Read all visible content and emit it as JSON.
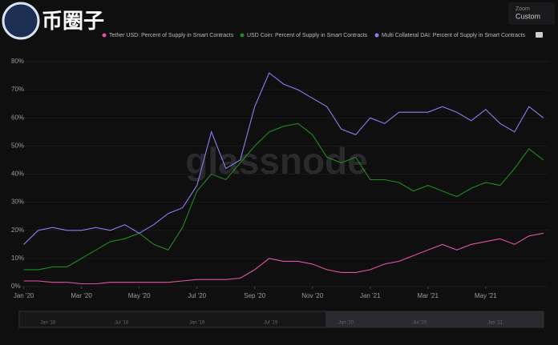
{
  "logo": "币圈子",
  "zoom": {
    "label": "Zoom",
    "value": "Custom"
  },
  "watermark": "glassnode",
  "navigator_labels": [
    "Jan '18",
    "Jul '18",
    "Jan '19",
    "Jul '19",
    "Jan '20",
    "Jul '20",
    "Jan '21"
  ],
  "chart_data": {
    "type": "line",
    "x": [
      0,
      0.5,
      1,
      1.5,
      2,
      2.5,
      3,
      3.5,
      4,
      4.5,
      5,
      5.5,
      6,
      6.5,
      7,
      7.5,
      8,
      8.5,
      9,
      9.5,
      10,
      10.5,
      11,
      11.5,
      12,
      12.5,
      13,
      13.5,
      14,
      14.5,
      15,
      15.5,
      16,
      16.5,
      17,
      17.5,
      18
    ],
    "xlim": [
      -0.1,
      18.2
    ],
    "xticks": [
      {
        "value": 0,
        "label": "Jan '20"
      },
      {
        "value": 2,
        "label": "Mar '20"
      },
      {
        "value": 4,
        "label": "May '20"
      },
      {
        "value": 6,
        "label": "Jul '20"
      },
      {
        "value": 8,
        "label": "Sep '20"
      },
      {
        "value": 10,
        "label": "Nov '20"
      },
      {
        "value": 12,
        "label": "Jan '21"
      },
      {
        "value": 14,
        "label": "Mar '21"
      },
      {
        "value": 16,
        "label": "May '21"
      }
    ],
    "ylim": [
      0,
      80
    ],
    "yticks": [
      {
        "value": 0,
        "label": "0%"
      },
      {
        "value": 10,
        "label": "10%"
      },
      {
        "value": 20,
        "label": "20%"
      },
      {
        "value": 30,
        "label": "30%"
      },
      {
        "value": 40,
        "label": "40%"
      },
      {
        "value": 50,
        "label": "50%"
      },
      {
        "value": 60,
        "label": "60%"
      },
      {
        "value": 70,
        "label": "70%"
      },
      {
        "value": 80,
        "label": "80%"
      }
    ],
    "grid": true,
    "series": [
      {
        "name": "Tether USD: Percent of Supply in Smart Contracts",
        "color": "#e0549e",
        "values": [
          2,
          2,
          1.5,
          1.5,
          1,
          1,
          1.5,
          1.5,
          1.5,
          1.5,
          1.5,
          2,
          2.5,
          2.5,
          2.5,
          3,
          6,
          10,
          9,
          9,
          8,
          6,
          5,
          5,
          6,
          8,
          9,
          11,
          13,
          15,
          13,
          15,
          16,
          17,
          15,
          18,
          19
        ]
      },
      {
        "name": "USD Coin: Percent of Supply in Smart Contracts",
        "color": "#1f8a1f",
        "values": [
          6,
          6,
          7,
          7,
          10,
          13,
          16,
          17,
          19,
          15,
          13,
          21,
          34,
          40,
          38,
          44,
          50,
          55,
          57,
          58,
          54,
          46,
          44,
          46,
          38,
          38,
          37,
          34,
          36,
          34,
          32,
          35,
          37,
          36,
          42,
          49,
          45
        ]
      },
      {
        "name": "Multi Collateral DAI: Percent of Supply in Smart Contracts",
        "color": "#8a7cf0",
        "values": [
          15,
          20,
          21,
          20,
          20,
          21,
          20,
          22,
          19,
          22,
          26,
          28,
          36,
          55,
          42,
          45,
          64,
          76,
          72,
          70,
          67,
          64,
          56,
          54,
          60,
          58,
          62,
          62,
          62,
          64,
          62,
          59,
          63,
          58,
          55,
          64,
          60
        ]
      }
    ]
  }
}
